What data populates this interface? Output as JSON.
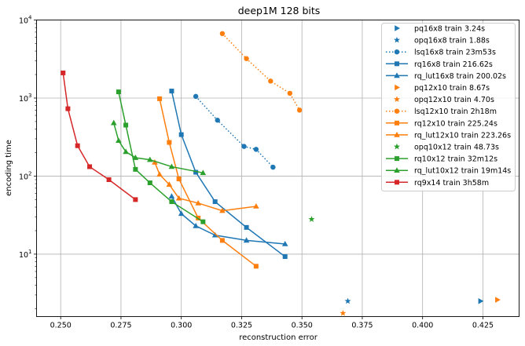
{
  "chart_data": {
    "type": "scatter",
    "title": "deep1M 128 bits",
    "xlabel": "reconstruction error",
    "ylabel": "encoding time",
    "xlim": [
      0.24,
      0.44
    ],
    "ylim_log10": [
      0.2,
      4
    ],
    "xscale": "linear",
    "yscale": "log",
    "grid": true,
    "legend_position": "top-right",
    "x_ticks": [
      {
        "v": 0.25,
        "label": "0.250"
      },
      {
        "v": 0.275,
        "label": "0.275"
      },
      {
        "v": 0.3,
        "label": "0.300"
      },
      {
        "v": 0.325,
        "label": "0.325"
      },
      {
        "v": 0.35,
        "label": "0.350"
      },
      {
        "v": 0.375,
        "label": "0.375"
      },
      {
        "v": 0.4,
        "label": "0.400"
      },
      {
        "v": 0.425,
        "label": "0.425"
      }
    ],
    "y_ticks": [
      {
        "v": 1,
        "mant": "10",
        "exp": "1"
      },
      {
        "v": 2,
        "mant": "10",
        "exp": "2"
      },
      {
        "v": 3,
        "mant": "10",
        "exp": "3"
      },
      {
        "v": 4,
        "mant": "10",
        "exp": "4"
      }
    ],
    "series": [
      {
        "name": "pq16x8 train 3.24s",
        "color": "#1f77b4",
        "marker": "tri-right",
        "line": "none",
        "points": [
          [
            0.424,
            2.5
          ]
        ]
      },
      {
        "name": "opq16x8 train 1.88s",
        "color": "#1f77b4",
        "marker": "star",
        "line": "none",
        "points": [
          [
            0.369,
            2.5
          ]
        ]
      },
      {
        "name": "lsq16x8 train 23m53s",
        "color": "#1f77b4",
        "marker": "circle",
        "line": "dotted",
        "points": [
          [
            0.306,
            1050
          ],
          [
            0.315,
            520
          ],
          [
            0.326,
            240
          ],
          [
            0.331,
            220
          ],
          [
            0.338,
            130
          ]
        ]
      },
      {
        "name": "rq16x8 train 216.62s",
        "color": "#1f77b4",
        "marker": "square",
        "line": "solid",
        "points": [
          [
            0.296,
            1230
          ],
          [
            0.3,
            340
          ],
          [
            0.306,
            112
          ],
          [
            0.314,
            47
          ],
          [
            0.327,
            22
          ],
          [
            0.343,
            9.3
          ]
        ]
      },
      {
        "name": "rq_lut16x8 train 200.02s",
        "color": "#1f77b4",
        "marker": "triangle",
        "line": "solid",
        "points": [
          [
            0.296,
            55
          ],
          [
            0.3,
            33
          ],
          [
            0.306,
            23
          ],
          [
            0.314,
            17.5
          ],
          [
            0.327,
            15
          ],
          [
            0.343,
            13.5
          ]
        ]
      },
      {
        "name": "pq12x10 train 8.67s",
        "color": "#ff7f0e",
        "marker": "tri-right",
        "line": "none",
        "points": [
          [
            0.431,
            2.6
          ]
        ]
      },
      {
        "name": "opq12x10 train 4.70s",
        "color": "#ff7f0e",
        "marker": "star",
        "line": "none",
        "points": [
          [
            0.367,
            1.75
          ]
        ]
      },
      {
        "name": "lsq12x10 train 2h18m",
        "color": "#ff7f0e",
        "marker": "circle",
        "line": "dotted",
        "points": [
          [
            0.317,
            6700
          ],
          [
            0.327,
            3200
          ],
          [
            0.337,
            1650
          ],
          [
            0.345,
            1150
          ],
          [
            0.349,
            700
          ]
        ]
      },
      {
        "name": "rq12x10 train 225.24s",
        "color": "#ff7f0e",
        "marker": "square",
        "line": "solid",
        "points": [
          [
            0.291,
            980
          ],
          [
            0.295,
            270
          ],
          [
            0.299,
            92
          ],
          [
            0.307,
            29
          ],
          [
            0.317,
            15
          ],
          [
            0.331,
            7
          ]
        ]
      },
      {
        "name": "rq_lut12x10 train 223.26s",
        "color": "#ff7f0e",
        "marker": "triangle",
        "line": "solid",
        "points": [
          [
            0.289,
            150
          ],
          [
            0.291,
            105
          ],
          [
            0.295,
            78
          ],
          [
            0.299,
            52
          ],
          [
            0.307,
            45
          ],
          [
            0.317,
            36
          ],
          [
            0.331,
            41
          ]
        ]
      },
      {
        "name": "opq10x12 train 48.73s",
        "color": "#2ca02c",
        "marker": "star",
        "line": "none",
        "points": [
          [
            0.354,
            28
          ]
        ]
      },
      {
        "name": "rq10x12 train 32m12s",
        "color": "#2ca02c",
        "marker": "square",
        "line": "solid",
        "points": [
          [
            0.274,
            1200
          ],
          [
            0.277,
            450
          ],
          [
            0.281,
            122
          ],
          [
            0.287,
            82
          ],
          [
            0.296,
            47
          ],
          [
            0.309,
            26
          ]
        ]
      },
      {
        "name": "rq_lut10x12 train 19m14s",
        "color": "#2ca02c",
        "marker": "triangle",
        "line": "solid",
        "points": [
          [
            0.272,
            480
          ],
          [
            0.274,
            285
          ],
          [
            0.277,
            205
          ],
          [
            0.281,
            172
          ],
          [
            0.287,
            162
          ],
          [
            0.296,
            132
          ],
          [
            0.309,
            110
          ]
        ]
      },
      {
        "name": "rq9x14 train 3h58m",
        "color": "#d62728",
        "marker": "square",
        "line": "solid",
        "points": [
          [
            0.251,
            2100
          ],
          [
            0.253,
            730
          ],
          [
            0.257,
            245
          ],
          [
            0.262,
            132
          ],
          [
            0.27,
            90
          ],
          [
            0.281,
            50
          ]
        ]
      }
    ]
  }
}
